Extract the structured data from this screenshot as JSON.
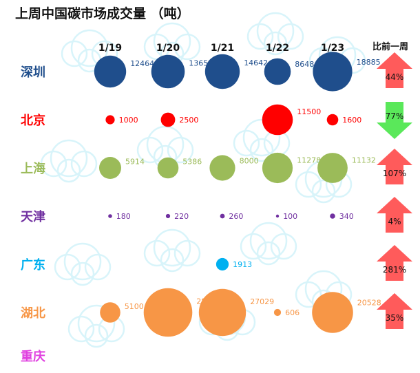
{
  "chart_data": {
    "type": "bubble",
    "title": "上周中国碳市场成交量 （吨）",
    "dates": [
      "1/19",
      "1/20",
      "1/21",
      "1/22",
      "1/23"
    ],
    "wow_header": "比前一周",
    "rows": [
      {
        "city": "深圳",
        "color": "#1F4E8C",
        "values": [
          12464,
          13652,
          14642,
          8648,
          18885
        ],
        "change": "44%",
        "direction": "up"
      },
      {
        "city": "北京",
        "color": "#FF0000",
        "values": [
          1000,
          2500,
          null,
          11500,
          1600
        ],
        "change": "77%",
        "direction": "down"
      },
      {
        "city": "上海",
        "color": "#9BBB59",
        "values": [
          5914,
          5386,
          8000,
          11278,
          11132
        ],
        "change": "107%",
        "direction": "up"
      },
      {
        "city": "天津",
        "color": "#7030A0",
        "values": [
          180,
          220,
          260,
          100,
          340
        ],
        "change": "4%",
        "direction": "up"
      },
      {
        "city": "广东",
        "color": "#00B0F0",
        "values": [
          null,
          null,
          1913,
          null,
          null
        ],
        "change": "281%",
        "direction": "up"
      },
      {
        "city": "湖北",
        "color": "#F79646",
        "values": [
          5100,
          28819,
          27029,
          606,
          20528
        ],
        "change": "35%",
        "direction": "up"
      },
      {
        "city": "重庆",
        "color": "#E040E0",
        "values": [
          null,
          null,
          null,
          null,
          null
        ],
        "change": "",
        "direction": "none"
      }
    ],
    "arrow_colors": {
      "up": "#FF5B5B",
      "down": "#5AE85A"
    }
  }
}
